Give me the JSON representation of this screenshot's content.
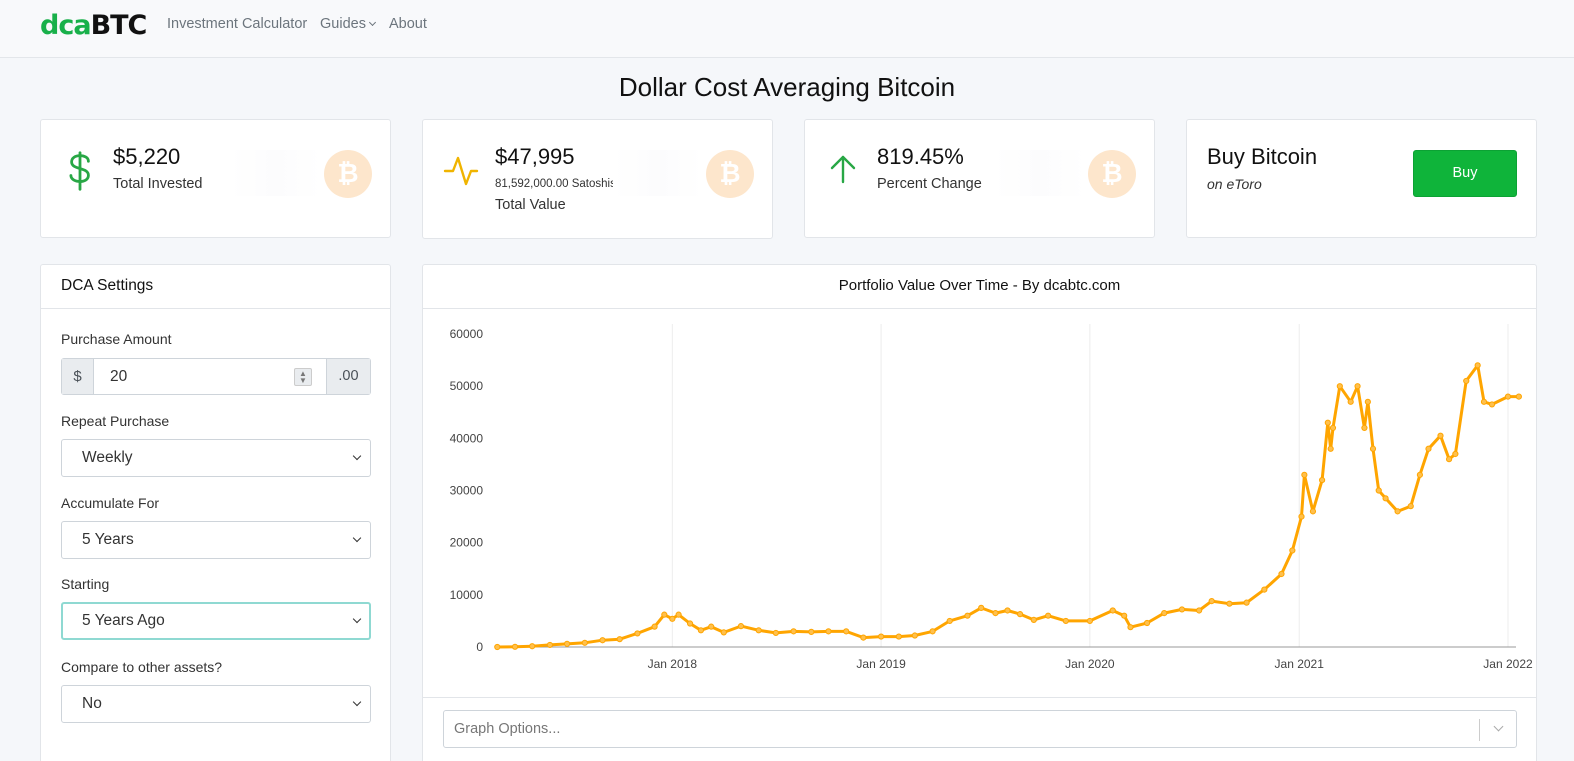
{
  "nav": {
    "brand_prefix": "dca",
    "brand_suffix": "BTC",
    "links": [
      "Investment Calculator",
      "Guides",
      "About"
    ]
  },
  "page_title": "Dollar Cost Averaging Bitcoin",
  "stats": [
    {
      "value": "$5,220",
      "label": "Total Invested",
      "icon": "dollar-icon",
      "color": "#28a745"
    },
    {
      "value": "$47,995",
      "sub": "81,592,000.00 Satoshis",
      "label": "Total Value",
      "icon": "activity-icon",
      "color": "#f0b400"
    },
    {
      "value": "819.45%",
      "label": "Percent Change",
      "icon": "arrow-up-icon",
      "color": "#28a745"
    }
  ],
  "coin_symbol": "₿",
  "buy": {
    "title": "Buy Bitcoin",
    "sub": "on eToro",
    "button": "Buy",
    "color": "#0fb43a"
  },
  "settings": {
    "title": "DCA Settings",
    "purchase_amount": {
      "label": "Purchase Amount",
      "prefix": "$",
      "value": "20",
      "suffix": ".00"
    },
    "repeat": {
      "label": "Repeat Purchase",
      "value": "Weekly"
    },
    "accumulate": {
      "label": "Accumulate For",
      "value": "5 Years"
    },
    "starting": {
      "label": "Starting",
      "value": "5 Years Ago"
    },
    "compare": {
      "label": "Compare to other assets?",
      "value": "No"
    }
  },
  "chart_title": "Portfolio Value Over Time - By dcabtc.com",
  "graph_options_placeholder": "Graph Options...",
  "chart_data": {
    "type": "line",
    "series": [
      {
        "color": "#ffa500",
        "points": [
          [
            "2017-03-01",
            0
          ],
          [
            "2017-04-01",
            40
          ],
          [
            "2017-05-01",
            150
          ],
          [
            "2017-06-01",
            400
          ],
          [
            "2017-07-01",
            600
          ],
          [
            "2017-08-01",
            800
          ],
          [
            "2017-09-01",
            1300
          ],
          [
            "2017-10-01",
            1500
          ],
          [
            "2017-11-01",
            2600
          ],
          [
            "2017-12-01",
            3900
          ],
          [
            "2017-12-18",
            6200
          ],
          [
            "2018-01-01",
            5400
          ],
          [
            "2018-01-12",
            6200
          ],
          [
            "2018-02-01",
            4500
          ],
          [
            "2018-02-20",
            3200
          ],
          [
            "2018-03-10",
            3900
          ],
          [
            "2018-04-01",
            2800
          ],
          [
            "2018-05-01",
            4000
          ],
          [
            "2018-06-01",
            3200
          ],
          [
            "2018-07-01",
            2700
          ],
          [
            "2018-08-01",
            3000
          ],
          [
            "2018-09-01",
            2900
          ],
          [
            "2018-10-01",
            3000
          ],
          [
            "2018-11-01",
            3000
          ],
          [
            "2018-12-01",
            1800
          ],
          [
            "2019-01-01",
            2000
          ],
          [
            "2019-02-01",
            2000
          ],
          [
            "2019-03-01",
            2200
          ],
          [
            "2019-04-01",
            3000
          ],
          [
            "2019-05-01",
            5000
          ],
          [
            "2019-06-01",
            6000
          ],
          [
            "2019-06-25",
            7500
          ],
          [
            "2019-07-20",
            6500
          ],
          [
            "2019-08-10",
            7000
          ],
          [
            "2019-09-01",
            6300
          ],
          [
            "2019-09-25",
            5200
          ],
          [
            "2019-10-20",
            6000
          ],
          [
            "2019-11-20",
            5000
          ],
          [
            "2020-01-01",
            5000
          ],
          [
            "2020-02-10",
            7000
          ],
          [
            "2020-03-01",
            6000
          ],
          [
            "2020-03-12",
            3800
          ],
          [
            "2020-04-10",
            4600
          ],
          [
            "2020-05-10",
            6500
          ],
          [
            "2020-06-10",
            7200
          ],
          [
            "2020-07-10",
            7000
          ],
          [
            "2020-08-01",
            8800
          ],
          [
            "2020-09-01",
            8300
          ],
          [
            "2020-10-01",
            8500
          ],
          [
            "2020-11-01",
            11000
          ],
          [
            "2020-12-01",
            14000
          ],
          [
            "2020-12-20",
            18500
          ],
          [
            "2021-01-05",
            25000
          ],
          [
            "2021-01-10",
            33000
          ],
          [
            "2021-01-25",
            26000
          ],
          [
            "2021-02-10",
            32000
          ],
          [
            "2021-02-20",
            43000
          ],
          [
            "2021-02-25",
            38000
          ],
          [
            "2021-03-01",
            42000
          ],
          [
            "2021-03-13",
            50000
          ],
          [
            "2021-04-01",
            47000
          ],
          [
            "2021-04-13",
            50000
          ],
          [
            "2021-04-25",
            42000
          ],
          [
            "2021-05-01",
            47000
          ],
          [
            "2021-05-10",
            38000
          ],
          [
            "2021-05-20",
            30000
          ],
          [
            "2021-06-01",
            28500
          ],
          [
            "2021-06-22",
            26000
          ],
          [
            "2021-07-15",
            27000
          ],
          [
            "2021-07-31",
            33000
          ],
          [
            "2021-08-15",
            38000
          ],
          [
            "2021-09-05",
            40500
          ],
          [
            "2021-09-20",
            36000
          ],
          [
            "2021-10-01",
            37000
          ],
          [
            "2021-10-20",
            51000
          ],
          [
            "2021-11-09",
            54000
          ],
          [
            "2021-11-20",
            47000
          ],
          [
            "2021-12-04",
            46500
          ],
          [
            "2022-01-01",
            48000
          ],
          [
            "2022-01-20",
            48000
          ]
        ]
      }
    ],
    "x_ticks": [
      "Jan 2018",
      "Jan 2019",
      "Jan 2020",
      "Jan 2021",
      "Jan 2022"
    ],
    "y_ticks": [
      "0",
      "10000",
      "20000",
      "30000",
      "40000",
      "50000",
      "60000"
    ],
    "ylim": [
      0,
      60000
    ],
    "xlim": [
      "2017-02-25",
      "2022-01-15"
    ],
    "grid_x": true
  }
}
